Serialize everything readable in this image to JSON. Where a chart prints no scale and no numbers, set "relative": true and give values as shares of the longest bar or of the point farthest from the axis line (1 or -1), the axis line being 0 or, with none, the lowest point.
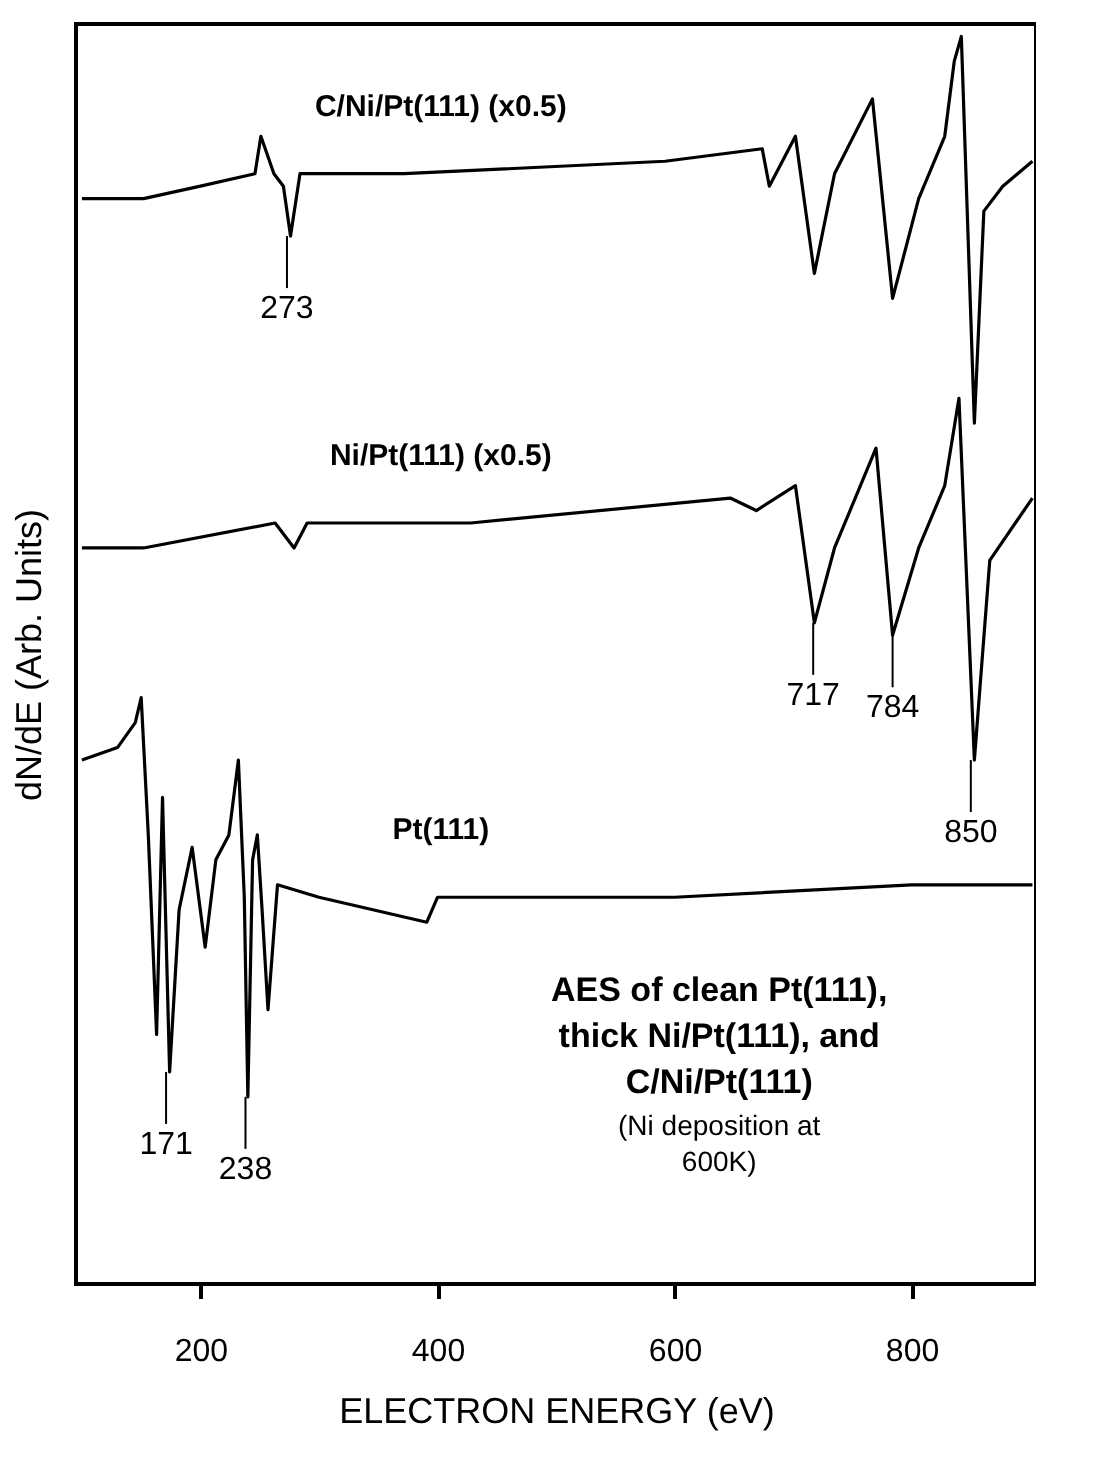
{
  "chart_data": {
    "type": "line",
    "relative": true,
    "xlabel": "ELECTRON ENERGY (eV)",
    "ylabel": "dN/dE (Arb. Units)",
    "xlim": [
      95,
      905
    ],
    "xticks": [
      200,
      400,
      600,
      800
    ],
    "series": [
      {
        "name": "C/Ni/Pt(111) (x0.5)",
        "color": "#000000",
        "x": [
          100,
          152,
          200,
          246,
          251,
          262,
          270,
          276,
          284,
          372,
          592,
          674,
          680,
          702,
          718,
          735,
          767,
          784,
          806,
          828,
          836,
          842,
          853,
          861,
          877,
          902
        ],
        "values": [
          0.87,
          0.87,
          0.88,
          0.89,
          0.92,
          0.89,
          0.88,
          0.84,
          0.89,
          0.89,
          0.9,
          0.91,
          0.88,
          0.92,
          0.81,
          0.89,
          0.95,
          0.79,
          0.87,
          0.92,
          0.98,
          1,
          0.69,
          0.86,
          0.88,
          0.9
        ]
      },
      {
        "name": "Ni/Pt(111) (x0.5)",
        "color": "#000000",
        "x": [
          100,
          152,
          263,
          279,
          290,
          428,
          647,
          669,
          702,
          718,
          735,
          770,
          784,
          806,
          828,
          840,
          853,
          866,
          902
        ],
        "values": [
          0.59,
          0.59,
          0.61,
          0.59,
          0.61,
          0.61,
          0.63,
          0.62,
          0.64,
          0.53,
          0.59,
          0.67,
          0.52,
          0.59,
          0.64,
          0.71,
          0.42,
          0.58,
          0.63
        ]
      },
      {
        "name": "Pt(111)",
        "color": "#000000",
        "x": [
          100,
          130,
          145,
          150,
          156,
          163,
          168,
          174,
          182,
          193,
          204,
          213,
          224,
          232,
          237,
          240,
          244,
          248,
          252,
          257,
          265,
          300,
          391,
          400,
          600,
          800,
          902
        ],
        "values": [
          0.42,
          0.43,
          0.45,
          0.47,
          0.36,
          0.2,
          0.39,
          0.17,
          0.3,
          0.35,
          0.27,
          0.34,
          0.36,
          0.42,
          0.31,
          0.15,
          0.34,
          0.36,
          0.3,
          0.22,
          0.32,
          0.31,
          0.29,
          0.31,
          0.31,
          0.32,
          0.32
        ]
      }
    ],
    "annotations": [
      {
        "text": "273",
        "x": 273,
        "y": 0.84
      },
      {
        "text": "717",
        "x": 717,
        "y": 0.53
      },
      {
        "text": "784",
        "x": 784,
        "y": 0.52
      },
      {
        "text": "850",
        "x": 850,
        "y": 0.42
      },
      {
        "text": "171",
        "x": 171,
        "y": 0.17
      },
      {
        "text": "238",
        "x": 238,
        "y": 0.15
      },
      "AES of clean Pt(111), thick Ni/Pt(111), and C/Ni/Pt(111)",
      "(Ni deposition at 600K)"
    ]
  }
}
